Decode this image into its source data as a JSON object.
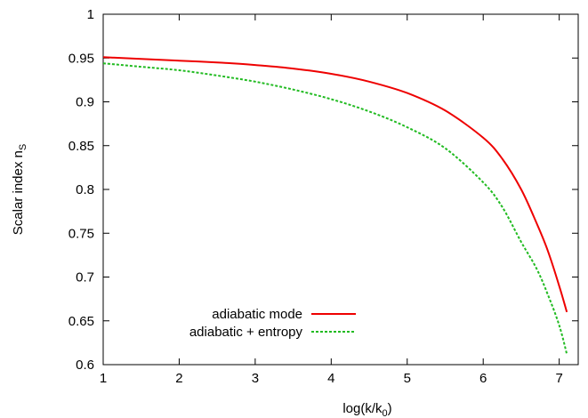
{
  "chart_data": {
    "type": "line",
    "title": "",
    "xlabel": "log(k/k",
    "xlabel_sub": "0",
    "xlabel_end": ")",
    "ylabel": "Scalar index n",
    "ylabel_sub": "S",
    "xlim": [
      1,
      7.25
    ],
    "ylim": [
      0.6,
      1.0
    ],
    "xticks": [
      1,
      2,
      3,
      4,
      5,
      6,
      7
    ],
    "yticks": [
      0.6,
      0.65,
      0.7,
      0.75,
      0.8,
      0.85,
      0.9,
      0.95,
      1
    ],
    "xtick_labels": [
      "1",
      "2",
      "3",
      "4",
      "5",
      "6",
      "7"
    ],
    "ytick_labels": [
      "0.6",
      "0.65",
      "0.7",
      "0.75",
      "0.8",
      "0.85",
      "0.9",
      "0.95",
      "1"
    ],
    "grid": false,
    "legend_position": "bottom-left",
    "series": [
      {
        "name": "adiabatic mode",
        "color": "#ee0000",
        "style": "solid",
        "x": [
          1.0,
          1.5,
          2.0,
          2.5,
          3.0,
          3.5,
          4.0,
          4.5,
          5.0,
          5.5,
          6.0,
          6.25,
          6.5,
          6.7,
          6.85,
          7.0,
          7.1
        ],
        "y": [
          0.951,
          0.949,
          0.947,
          0.945,
          0.942,
          0.938,
          0.932,
          0.923,
          0.91,
          0.89,
          0.859,
          0.835,
          0.8,
          0.762,
          0.73,
          0.69,
          0.66
        ]
      },
      {
        "name": "adiabatic + entropy",
        "color": "#22bb22",
        "style": "dashed",
        "x": [
          1.0,
          1.5,
          2.0,
          2.5,
          3.0,
          3.5,
          4.0,
          4.5,
          5.0,
          5.5,
          6.0,
          6.25,
          6.5,
          6.7,
          6.85,
          7.0,
          7.1
        ],
        "y": [
          0.944,
          0.94,
          0.936,
          0.93,
          0.923,
          0.914,
          0.903,
          0.889,
          0.871,
          0.847,
          0.808,
          0.78,
          0.74,
          0.71,
          0.68,
          0.645,
          0.612
        ]
      }
    ]
  }
}
